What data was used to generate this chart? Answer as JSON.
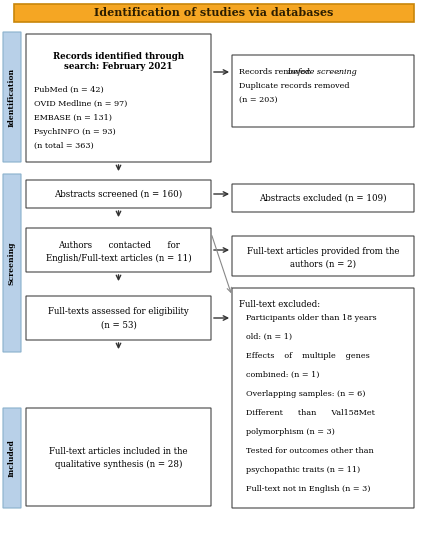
{
  "title": "Identification of studies via databases",
  "title_bg": "#F5A623",
  "title_border": "#C8860A",
  "title_text_color": "#2B1D00",
  "box_border_color": "#444444",
  "sidebar_color": "#B8D0E8",
  "sidebar_border": "#8AB0CC",
  "bg_color": "#FFFFFF",
  "arrow_color": "#333333",
  "arrow_color_light": "#888888",
  "sidebar_identification_label": "Identification",
  "sidebar_screening_label": "Screening",
  "sidebar_included_label": "Included",
  "box1_title": "Records identified through\nsearch: February 2021",
  "box1_items": [
    "PubMed (n = 42)",
    "OVID Medline (n = 97)",
    "EMBASE (n = 131)",
    "PsychINFO (n = 93)",
    "(n total = 363)"
  ],
  "box2_line1_normal": "Records removed ",
  "box2_line1_italic": "before screening",
  "box2_line1_colon": ":",
  "box2_line2": "Duplicate records removed",
  "box2_line3": "(n = 203)",
  "box3_text": "Abstracts screened (n = 160)",
  "box4_text": "Abstracts excluded (n = 109)",
  "box5_line1": "Authors      contacted      for",
  "box5_line2": "English/Full-text articles (n = 11)",
  "box6_line1": "Full-text articles provided from the",
  "box6_line2": "authors (n = 2)",
  "box7_line1": "Full-texts assessed for eligibility",
  "box7_line2": "(n = 53)",
  "box8_title": "Full-text excluded:",
  "box8_items": [
    "Participants older than 18 years",
    "old: (n = 1)",
    "Effects    of    multiple    genes",
    "combined: (n = 1)",
    "Overlapping samples: (n = 6)",
    "Different      than      Val158Met",
    "polymorphism (n = 3)",
    "Tested for outcomes other than",
    "psychopathic traits (n = 11)",
    "Full-text not in English (n = 3)"
  ],
  "box9_line1": "Full-text articles included in the",
  "box9_line2": "qualitative synthesis (n = 28)"
}
